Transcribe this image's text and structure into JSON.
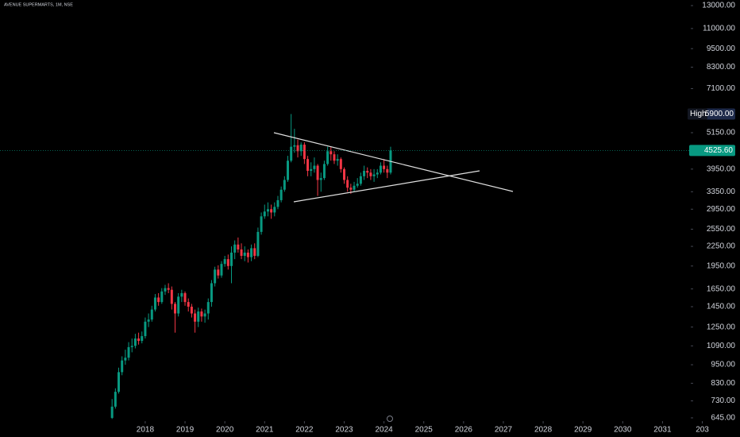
{
  "chart_data": {
    "type": "candlestick",
    "title": "AVENUE SUPERMARTS, 1M, NSE",
    "log_scale": true,
    "up_color": "#089981",
    "down_color": "#f23645",
    "x": [
      "2017-03",
      "2017-04",
      "2017-05",
      "2017-06",
      "2017-07",
      "2017-08",
      "2017-09",
      "2017-10",
      "2017-11",
      "2017-12",
      "2018-01",
      "2018-02",
      "2018-03",
      "2018-04",
      "2018-05",
      "2018-06",
      "2018-07",
      "2018-08",
      "2018-09",
      "2018-10",
      "2018-11",
      "2018-12",
      "2019-01",
      "2019-02",
      "2019-03",
      "2019-04",
      "2019-05",
      "2019-06",
      "2019-07",
      "2019-08",
      "2019-09",
      "2019-10",
      "2019-11",
      "2019-12",
      "2020-01",
      "2020-02",
      "2020-03",
      "2020-04",
      "2020-05",
      "2020-06",
      "2020-07",
      "2020-08",
      "2020-09",
      "2020-10",
      "2020-11",
      "2020-12",
      "2021-01",
      "2021-02",
      "2021-03",
      "2021-04",
      "2021-05",
      "2021-06",
      "2021-07",
      "2021-08",
      "2021-09",
      "2021-10",
      "2021-11",
      "2021-12",
      "2022-01",
      "2022-02",
      "2022-03",
      "2022-04",
      "2022-05",
      "2022-06",
      "2022-07",
      "2022-08",
      "2022-09",
      "2022-10",
      "2022-11",
      "2022-12",
      "2023-01",
      "2023-02",
      "2023-03",
      "2023-04",
      "2023-05",
      "2023-06",
      "2023-07",
      "2023-08",
      "2023-09",
      "2023-10",
      "2023-11",
      "2023-12",
      "2024-01",
      "2024-02",
      "2024-03"
    ],
    "open": [
      645,
      700,
      780,
      900,
      980,
      1000,
      1080,
      1090,
      1150,
      1130,
      1170,
      1300,
      1320,
      1420,
      1550,
      1500,
      1620,
      1660,
      1640,
      1480,
      1380,
      1560,
      1600,
      1500,
      1450,
      1380,
      1300,
      1400,
      1350,
      1380,
      1500,
      1720,
      1900,
      1820,
      1980,
      2050,
      1950,
      2150,
      2280,
      2200,
      2100,
      2150,
      2080,
      2220,
      2100,
      2500,
      2800,
      2900,
      2950,
      2880,
      3000,
      3150,
      3400,
      3650,
      4200,
      4650,
      4700,
      4500,
      4720,
      4250,
      3900,
      3950,
      4050,
      3650,
      3700,
      4100,
      4500,
      4400,
      4200,
      4250,
      3950,
      3650,
      3450,
      3400,
      3500,
      3550,
      3750,
      3900,
      3850,
      3750,
      3800,
      3850,
      4050,
      3950,
      3850
    ],
    "high": [
      740,
      800,
      930,
      1010,
      1060,
      1120,
      1150,
      1190,
      1200,
      1210,
      1340,
      1380,
      1460,
      1590,
      1600,
      1660,
      1700,
      1720,
      1680,
      1500,
      1600,
      1640,
      1620,
      1540,
      1480,
      1420,
      1440,
      1430,
      1420,
      1540,
      1760,
      1940,
      1960,
      2020,
      2100,
      2120,
      2250,
      2350,
      2400,
      2300,
      2250,
      2200,
      2280,
      2300,
      2580,
      2880,
      3050,
      3100,
      3050,
      3100,
      3250,
      3480,
      3750,
      4350,
      5900,
      5300,
      4900,
      4800,
      4800,
      4350,
      4150,
      4300,
      4100,
      3850,
      4200,
      4650,
      4650,
      4500,
      4400,
      4300,
      4000,
      3750,
      3550,
      3600,
      3700,
      3850,
      4050,
      4000,
      3950,
      3950,
      3950,
      4150,
      4250,
      4050,
      4650
    ],
    "low": [
      640,
      690,
      770,
      880,
      950,
      980,
      1040,
      1070,
      1100,
      1110,
      1150,
      1250,
      1300,
      1400,
      1460,
      1480,
      1580,
      1600,
      1420,
      1200,
      1350,
      1500,
      1460,
      1400,
      1340,
      1200,
      1250,
      1300,
      1290,
      1320,
      1450,
      1680,
      1780,
      1790,
      1940,
      1900,
      1720,
      2050,
      2150,
      2050,
      2020,
      2000,
      2020,
      2050,
      2080,
      2450,
      2750,
      2800,
      2750,
      2800,
      2950,
      3100,
      3350,
      3600,
      4150,
      4450,
      4300,
      4350,
      4100,
      3750,
      3750,
      3850,
      3250,
      3350,
      3650,
      4050,
      4200,
      4100,
      4050,
      3850,
      3550,
      3350,
      3300,
      3350,
      3450,
      3500,
      3650,
      3700,
      3650,
      3600,
      3700,
      3800,
      3850,
      3700,
      3800
    ],
    "close": [
      700,
      780,
      900,
      980,
      1000,
      1080,
      1090,
      1150,
      1130,
      1170,
      1300,
      1320,
      1420,
      1550,
      1500,
      1620,
      1660,
      1640,
      1480,
      1380,
      1560,
      1600,
      1500,
      1450,
      1380,
      1300,
      1400,
      1350,
      1380,
      1500,
      1720,
      1900,
      1820,
      1980,
      2050,
      1950,
      2150,
      2280,
      2200,
      2100,
      2150,
      2080,
      2220,
      2100,
      2500,
      2800,
      2900,
      2950,
      2880,
      3000,
      3150,
      3400,
      3650,
      4200,
      4650,
      4700,
      4500,
      4720,
      4250,
      3900,
      3950,
      4050,
      3650,
      3700,
      4100,
      4500,
      4400,
      4200,
      4250,
      3950,
      3650,
      3450,
      3400,
      3500,
      3550,
      3750,
      3900,
      3850,
      3750,
      3800,
      3850,
      4050,
      3950,
      3850,
      4525.6
    ],
    "xlim": [
      2014.35,
      2031.71
    ],
    "xticks": [
      2018,
      2019,
      2020,
      2021,
      2022,
      2023,
      2024,
      2025,
      2026,
      2027,
      2028,
      2029,
      2030,
      2031,
      {
        "value": 2032,
        "label": "203"
      }
    ],
    "ylim": [
      630,
      13540
    ],
    "yticks": [
      {
        "value": 13000,
        "label": "13000.00"
      },
      {
        "value": 11000,
        "label": "11000.00"
      },
      {
        "value": 9500,
        "label": "9500.00"
      },
      {
        "value": 8300,
        "label": "8300.00"
      },
      {
        "value": 7100,
        "label": "7100.00"
      },
      {
        "value": 5150,
        "label": "5150.00"
      },
      {
        "value": 3950,
        "label": "3950.00"
      },
      {
        "value": 3350,
        "label": "3350.00"
      },
      {
        "value": 2950,
        "label": "2950.00"
      },
      {
        "value": 2550,
        "label": "2550.00"
      },
      {
        "value": 2250,
        "label": "2250.00"
      },
      {
        "value": 1950,
        "label": "1950.00"
      },
      {
        "value": 1650,
        "label": "1650.00"
      },
      {
        "value": 1450,
        "label": "1450.00"
      },
      {
        "value": 1250,
        "label": "1250.00"
      },
      {
        "value": 1090,
        "label": "1090.00"
      },
      {
        "value": 950,
        "label": "950.00"
      },
      {
        "value": 830,
        "label": "830.00"
      },
      {
        "value": 730,
        "label": "730.00"
      },
      {
        "value": 645,
        "label": "645.00"
      }
    ],
    "high_label": {
      "name": "High",
      "value": 5900,
      "label": "5900.00"
    },
    "last_price": {
      "value": 4525.6,
      "label": "4525.60"
    }
  }
}
